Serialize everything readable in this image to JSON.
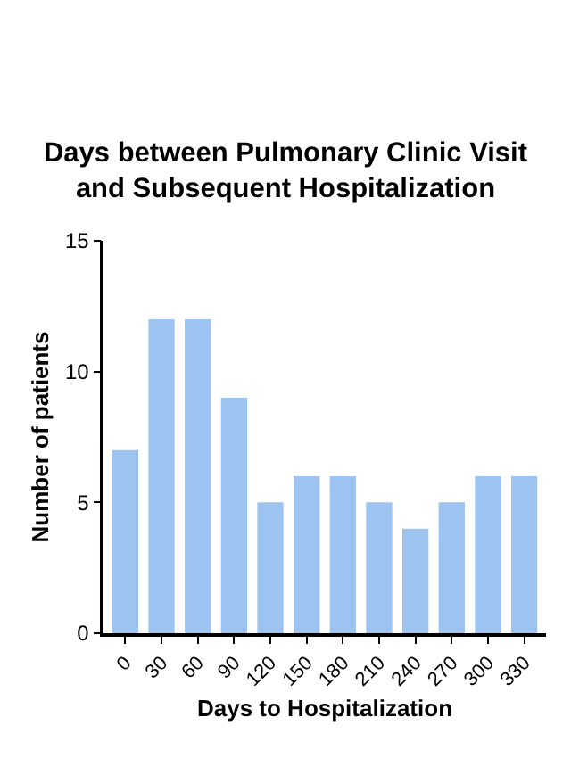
{
  "chart_data": {
    "type": "bar",
    "title": "Days between Pulmonary Clinic Visit and Subsequent Hospitalization",
    "xlabel": "Days to Hospitalization",
    "ylabel": "Number of patients",
    "categories": [
      "0",
      "30",
      "60",
      "90",
      "120",
      "150",
      "180",
      "210",
      "240",
      "270",
      "300",
      "330"
    ],
    "values": [
      7,
      12,
      12,
      9,
      5,
      6,
      6,
      5,
      4,
      5,
      6,
      6
    ],
    "color": "#9dc3f1",
    "ylim": [
      0,
      15
    ],
    "yticks": [
      0,
      5,
      10,
      15
    ],
    "grid": false
  }
}
